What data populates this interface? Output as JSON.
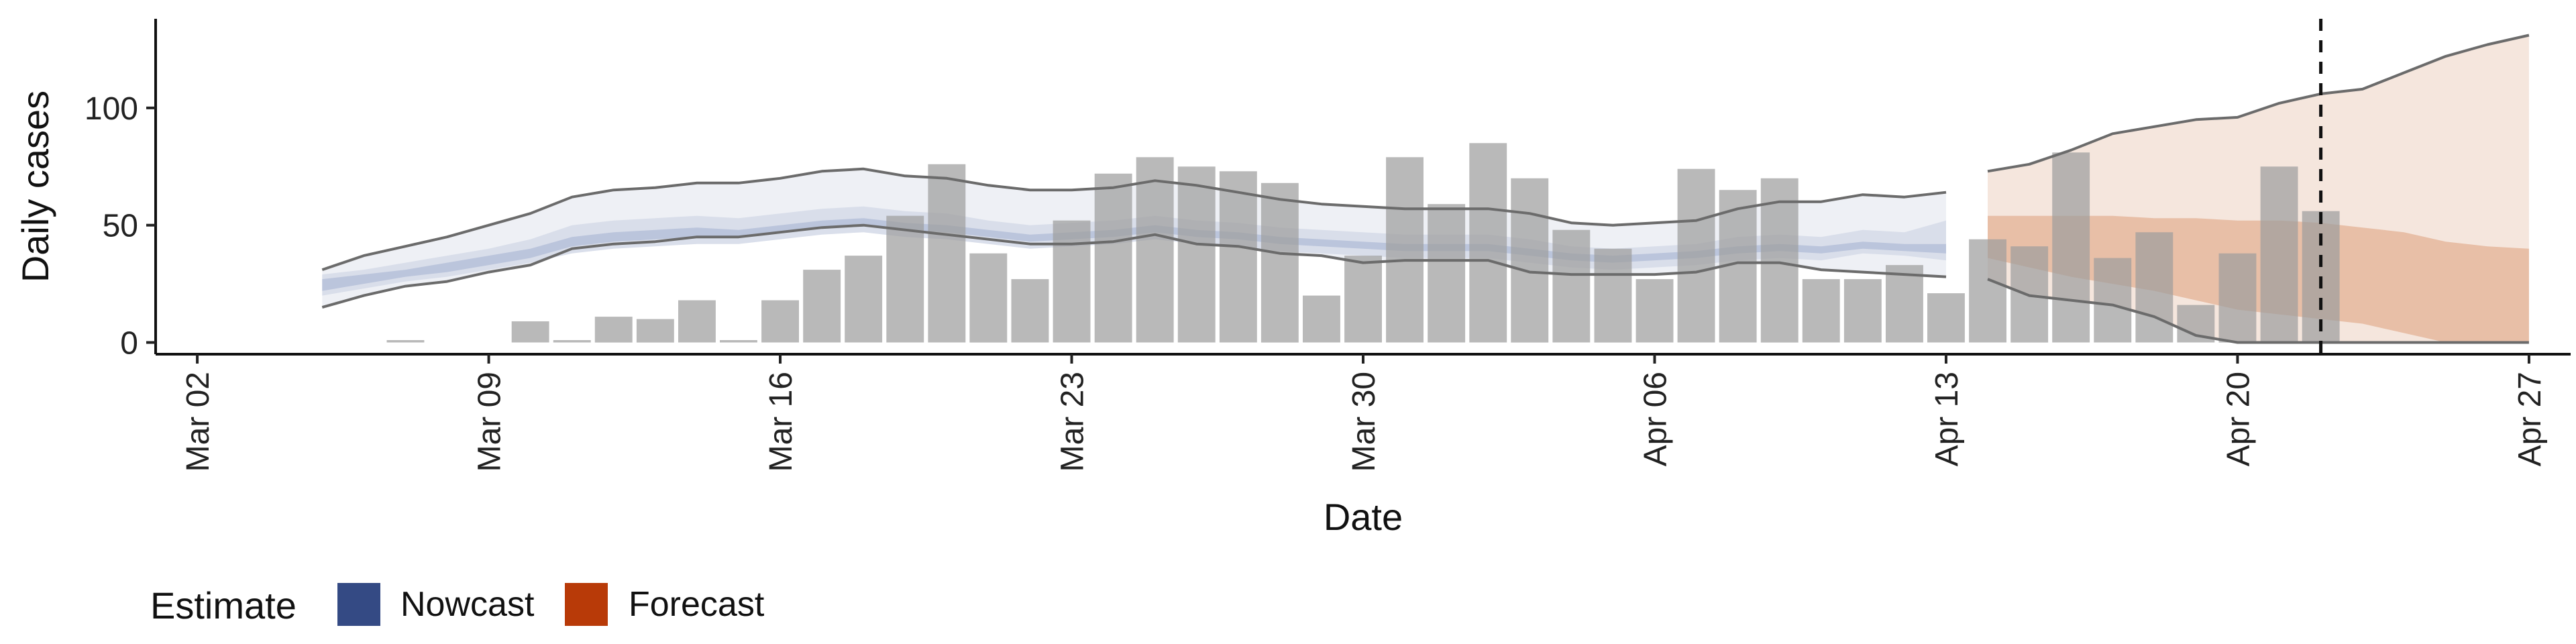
{
  "chart_data": {
    "type": "bar",
    "xlabel": "Date",
    "ylabel": "Daily cases",
    "x_ticks": [
      "Mar 02",
      "Mar 09",
      "Mar 16",
      "Mar 23",
      "Mar 30",
      "Apr 06",
      "Apr 13",
      "Apr 20",
      "Apr 27"
    ],
    "y_ticks": [
      0,
      50,
      100
    ],
    "ylim": [
      -5,
      138
    ],
    "xlim": [
      "2020-03-01",
      "2020-04-28"
    ],
    "vline_date": "2020-04-22",
    "grid": false,
    "legend_position": "bottom-left",
    "legend": {
      "title": "Estimate",
      "items": [
        {
          "label": "Nowcast",
          "color": "#344A84"
        },
        {
          "label": "Forecast",
          "color": "#B83A08"
        }
      ]
    },
    "observed_cases": {
      "dates": [
        "2020-03-07",
        "2020-03-08",
        "2020-03-09",
        "2020-03-10",
        "2020-03-11",
        "2020-03-12",
        "2020-03-13",
        "2020-03-14",
        "2020-03-15",
        "2020-03-16",
        "2020-03-17",
        "2020-03-18",
        "2020-03-19",
        "2020-03-20",
        "2020-03-21",
        "2020-03-22",
        "2020-03-23",
        "2020-03-24",
        "2020-03-25",
        "2020-03-26",
        "2020-03-27",
        "2020-03-28",
        "2020-03-29",
        "2020-03-30",
        "2020-03-31",
        "2020-04-01",
        "2020-04-02",
        "2020-04-03",
        "2020-04-04",
        "2020-04-05",
        "2020-04-06",
        "2020-04-07",
        "2020-04-08",
        "2020-04-09",
        "2020-04-10",
        "2020-04-11",
        "2020-04-12",
        "2020-04-13",
        "2020-04-14",
        "2020-04-15",
        "2020-04-16",
        "2020-04-17",
        "2020-04-18",
        "2020-04-19",
        "2020-04-20",
        "2020-04-21",
        "2020-04-22"
      ],
      "values": [
        1,
        0,
        0,
        9,
        1,
        11,
        10,
        18,
        1,
        18,
        31,
        37,
        54,
        76,
        38,
        27,
        52,
        72,
        79,
        75,
        73,
        68,
        20,
        37,
        79,
        59,
        85,
        70,
        48,
        40,
        27,
        74,
        65,
        70,
        27,
        27,
        33,
        21,
        44,
        41,
        81,
        36,
        47,
        16,
        38,
        75,
        56
      ]
    },
    "nowcast": {
      "dates": [
        "2020-03-05",
        "2020-03-06",
        "2020-03-07",
        "2020-03-08",
        "2020-03-09",
        "2020-03-10",
        "2020-03-11",
        "2020-03-12",
        "2020-03-13",
        "2020-03-14",
        "2020-03-15",
        "2020-03-16",
        "2020-03-17",
        "2020-03-18",
        "2020-03-19",
        "2020-03-20",
        "2020-03-21",
        "2020-03-22",
        "2020-03-23",
        "2020-03-24",
        "2020-03-25",
        "2020-03-26",
        "2020-03-27",
        "2020-03-28",
        "2020-03-29",
        "2020-03-30",
        "2020-03-31",
        "2020-04-01",
        "2020-04-02",
        "2020-04-03",
        "2020-04-04",
        "2020-04-05",
        "2020-04-06",
        "2020-04-07",
        "2020-04-08",
        "2020-04-09",
        "2020-04-10",
        "2020-04-11",
        "2020-04-12",
        "2020-04-13"
      ],
      "outer_upper": [
        31,
        37,
        41,
        45,
        50,
        55,
        62,
        65,
        66,
        68,
        68,
        70,
        73,
        74,
        71,
        70,
        67,
        65,
        65,
        66,
        69,
        67,
        64,
        61,
        59,
        58,
        57,
        57,
        57,
        55,
        51,
        50,
        51,
        52,
        57,
        60,
        60,
        63,
        62,
        64
      ],
      "outer_lower": [
        15,
        20,
        24,
        26,
        30,
        33,
        40,
        42,
        43,
        45,
        45,
        47,
        49,
        50,
        48,
        46,
        44,
        42,
        42,
        43,
        46,
        42,
        41,
        38,
        37,
        34,
        35,
        35,
        35,
        30,
        29,
        29,
        29,
        30,
        34,
        34,
        31,
        30,
        29,
        28
      ],
      "middle_upper": [
        29,
        31,
        34,
        37,
        40,
        44,
        50,
        52,
        53,
        54,
        53,
        55,
        57,
        58,
        56,
        55,
        52,
        50,
        51,
        52,
        54,
        52,
        51,
        49,
        48,
        47,
        46,
        46,
        46,
        44,
        41,
        40,
        41,
        42,
        45,
        46,
        45,
        48,
        47,
        52
      ],
      "middle_lower": [
        20,
        23,
        26,
        28,
        31,
        34,
        38,
        40,
        41,
        42,
        42,
        44,
        46,
        47,
        45,
        44,
        42,
        40,
        41,
        42,
        44,
        42,
        41,
        39,
        38,
        37,
        36,
        36,
        36,
        34,
        32,
        31,
        32,
        33,
        35,
        36,
        35,
        38,
        37,
        35
      ],
      "inner_upper": [
        27,
        29,
        31,
        34,
        37,
        40,
        45,
        47,
        48,
        49,
        48,
        50,
        52,
        53,
        51,
        50,
        48,
        46,
        47,
        48,
        50,
        48,
        47,
        45,
        44,
        43,
        42,
        42,
        42,
        40,
        38,
        37,
        38,
        39,
        41,
        42,
        41,
        43,
        42,
        42
      ],
      "inner_lower": [
        22,
        25,
        28,
        30,
        33,
        36,
        41,
        43,
        44,
        45,
        45,
        47,
        49,
        50,
        48,
        47,
        45,
        43,
        44,
        45,
        47,
        45,
        44,
        42,
        41,
        40,
        39,
        39,
        39,
        37,
        35,
        34,
        35,
        36,
        38,
        39,
        38,
        40,
        39,
        38
      ]
    },
    "forecast": {
      "dates": [
        "2020-04-14",
        "2020-04-15",
        "2020-04-16",
        "2020-04-17",
        "2020-04-18",
        "2020-04-19",
        "2020-04-20",
        "2020-04-21",
        "2020-04-22",
        "2020-04-23",
        "2020-04-24",
        "2020-04-25",
        "2020-04-26",
        "2020-04-27"
      ],
      "outer_upper": [
        73,
        76,
        82,
        89,
        92,
        95,
        96,
        102,
        106,
        108,
        115,
        122,
        127,
        131
      ],
      "outer_lower": [
        27,
        20,
        18,
        16,
        11,
        3,
        0,
        0,
        0,
        0,
        0,
        0,
        0,
        0
      ],
      "inner_upper": [
        54,
        54,
        54,
        54,
        53,
        53,
        52,
        52,
        51,
        49,
        47,
        43,
        41,
        40
      ],
      "inner_lower": [
        36,
        32,
        28,
        25,
        22,
        18,
        14,
        12,
        10,
        8,
        4,
        0,
        0,
        0
      ]
    }
  }
}
